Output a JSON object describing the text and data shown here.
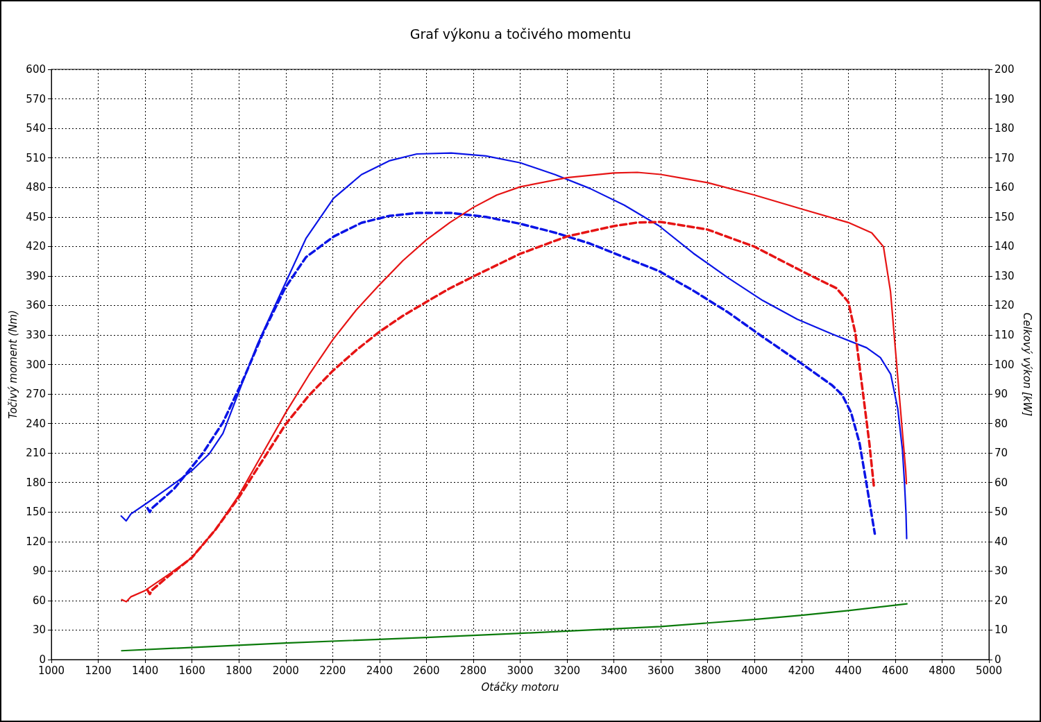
{
  "chart_data": {
    "type": "line",
    "title": "Graf výkonu a točivého momentu",
    "xlabel": "Otáčky motoru",
    "ylabel": "Točivý moment (Nm)",
    "y2label": "Celkový výkon [kW]",
    "xlim": [
      1000,
      5000
    ],
    "xticks": [
      1000,
      1200,
      1400,
      1600,
      1800,
      2000,
      2200,
      2400,
      2600,
      2800,
      3000,
      3200,
      3400,
      3600,
      3800,
      4000,
      4200,
      4400,
      4600,
      4800,
      5000
    ],
    "ylim": [
      0,
      600
    ],
    "yticks": [
      0,
      30,
      60,
      90,
      120,
      150,
      180,
      210,
      240,
      270,
      300,
      330,
      360,
      390,
      420,
      450,
      480,
      510,
      540,
      570,
      600
    ],
    "y2lim": [
      0,
      200
    ],
    "y2ticks": [
      0,
      10,
      20,
      30,
      40,
      50,
      60,
      70,
      80,
      90,
      100,
      110,
      120,
      130,
      140,
      150,
      160,
      170,
      180,
      190,
      200
    ],
    "grid": true,
    "series": [
      {
        "color": "#0a14e6",
        "line_style": "solid",
        "x": [
          1298,
          1319,
          1339,
          1407,
          1496,
          1599,
          1673,
          1732,
          1806,
          1880,
          1968,
          2086,
          2204,
          2323,
          2441,
          2559,
          2706,
          2854,
          3001,
          3149,
          3297,
          3444,
          3592,
          3739,
          3887,
          4035,
          4182,
          4330,
          4478,
          4537,
          4581,
          4611,
          4631,
          4640,
          4646,
          4649
        ],
        "values": [
          146,
          141,
          148,
          159,
          174,
          192,
          209,
          230,
          276,
          321,
          367,
          428,
          469,
          493,
          507,
          514,
          515,
          512,
          505,
          493,
          479,
          462,
          441,
          413,
          388,
          365,
          346,
          331,
          317,
          307,
          290,
          255,
          213,
          178,
          149,
          123
        ]
      },
      {
        "color": "#0a14e6",
        "line_style": "dashed",
        "x": [
          1410,
          1420,
          1430,
          1525,
          1644,
          1732,
          1821,
          1909,
          1998,
          2086,
          2204,
          2323,
          2441,
          2559,
          2706,
          2854,
          3001,
          3149,
          3297,
          3444,
          3592,
          3739,
          3887,
          4035,
          4182,
          4330,
          4374,
          4412,
          4448,
          4478,
          4513
        ],
        "values": [
          154,
          150,
          154,
          174,
          209,
          241,
          286,
          335,
          378,
          409,
          430,
          444,
          451,
          454,
          454,
          450,
          443,
          434,
          423,
          409,
          395,
          375,
          353,
          328,
          304,
          279,
          269,
          251,
          220,
          178,
          128
        ]
      },
      {
        "color": "#e61414",
        "line_style": "solid",
        "axis": "y2",
        "x": [
          1300,
          1320,
          1340,
          1400,
          1500,
          1600,
          1700,
          1800,
          1900,
          2000,
          2100,
          2200,
          2300,
          2400,
          2500,
          2600,
          2700,
          2800,
          2900,
          3000,
          3200,
          3400,
          3500,
          3600,
          3800,
          4000,
          4200,
          4400,
          4500,
          4550,
          4580,
          4610,
          4630,
          4645,
          4648
        ],
        "values": [
          20.3,
          19.6,
          21.3,
          23.4,
          28.8,
          34.6,
          44.0,
          55.7,
          69.7,
          83.7,
          96.6,
          108.3,
          118.4,
          127.0,
          135.2,
          142.2,
          148.1,
          153.2,
          157.4,
          160.2,
          163.3,
          164.9,
          165.1,
          164.4,
          161.6,
          157.4,
          152.7,
          148.1,
          144.6,
          139.9,
          124.7,
          96.6,
          77.9,
          63.9,
          59.6
        ]
      },
      {
        "color": "#e61414",
        "line_style": "dashed",
        "axis": "y2",
        "x": [
          1410,
          1420,
          1430,
          1500,
          1600,
          1700,
          1800,
          1900,
          2000,
          2100,
          2200,
          2300,
          2400,
          2500,
          2600,
          2700,
          2800,
          3000,
          3200,
          3400,
          3500,
          3600,
          3800,
          4000,
          4200,
          4350,
          4400,
          4430,
          4460,
          4490,
          4510
        ],
        "values": [
          23.6,
          22.2,
          23.6,
          28.3,
          34.6,
          44.0,
          55.0,
          67.4,
          79.8,
          89.6,
          97.8,
          104.8,
          111.1,
          116.5,
          121.2,
          125.8,
          129.8,
          137.5,
          143.4,
          146.9,
          148.1,
          148.3,
          145.7,
          139.9,
          131.7,
          125.8,
          121.2,
          110.6,
          91.9,
          73.2,
          58.0
        ]
      },
      {
        "color": "#0a7a0a",
        "line_style": "solid",
        "axis": "y2",
        "x": [
          1300,
          2000,
          2600,
          3000,
          3600,
          4000,
          4200,
          4400,
          4650
        ],
        "values": [
          3.0,
          5.6,
          7.5,
          8.9,
          11.2,
          13.6,
          15.0,
          16.6,
          18.9
        ]
      }
    ]
  }
}
